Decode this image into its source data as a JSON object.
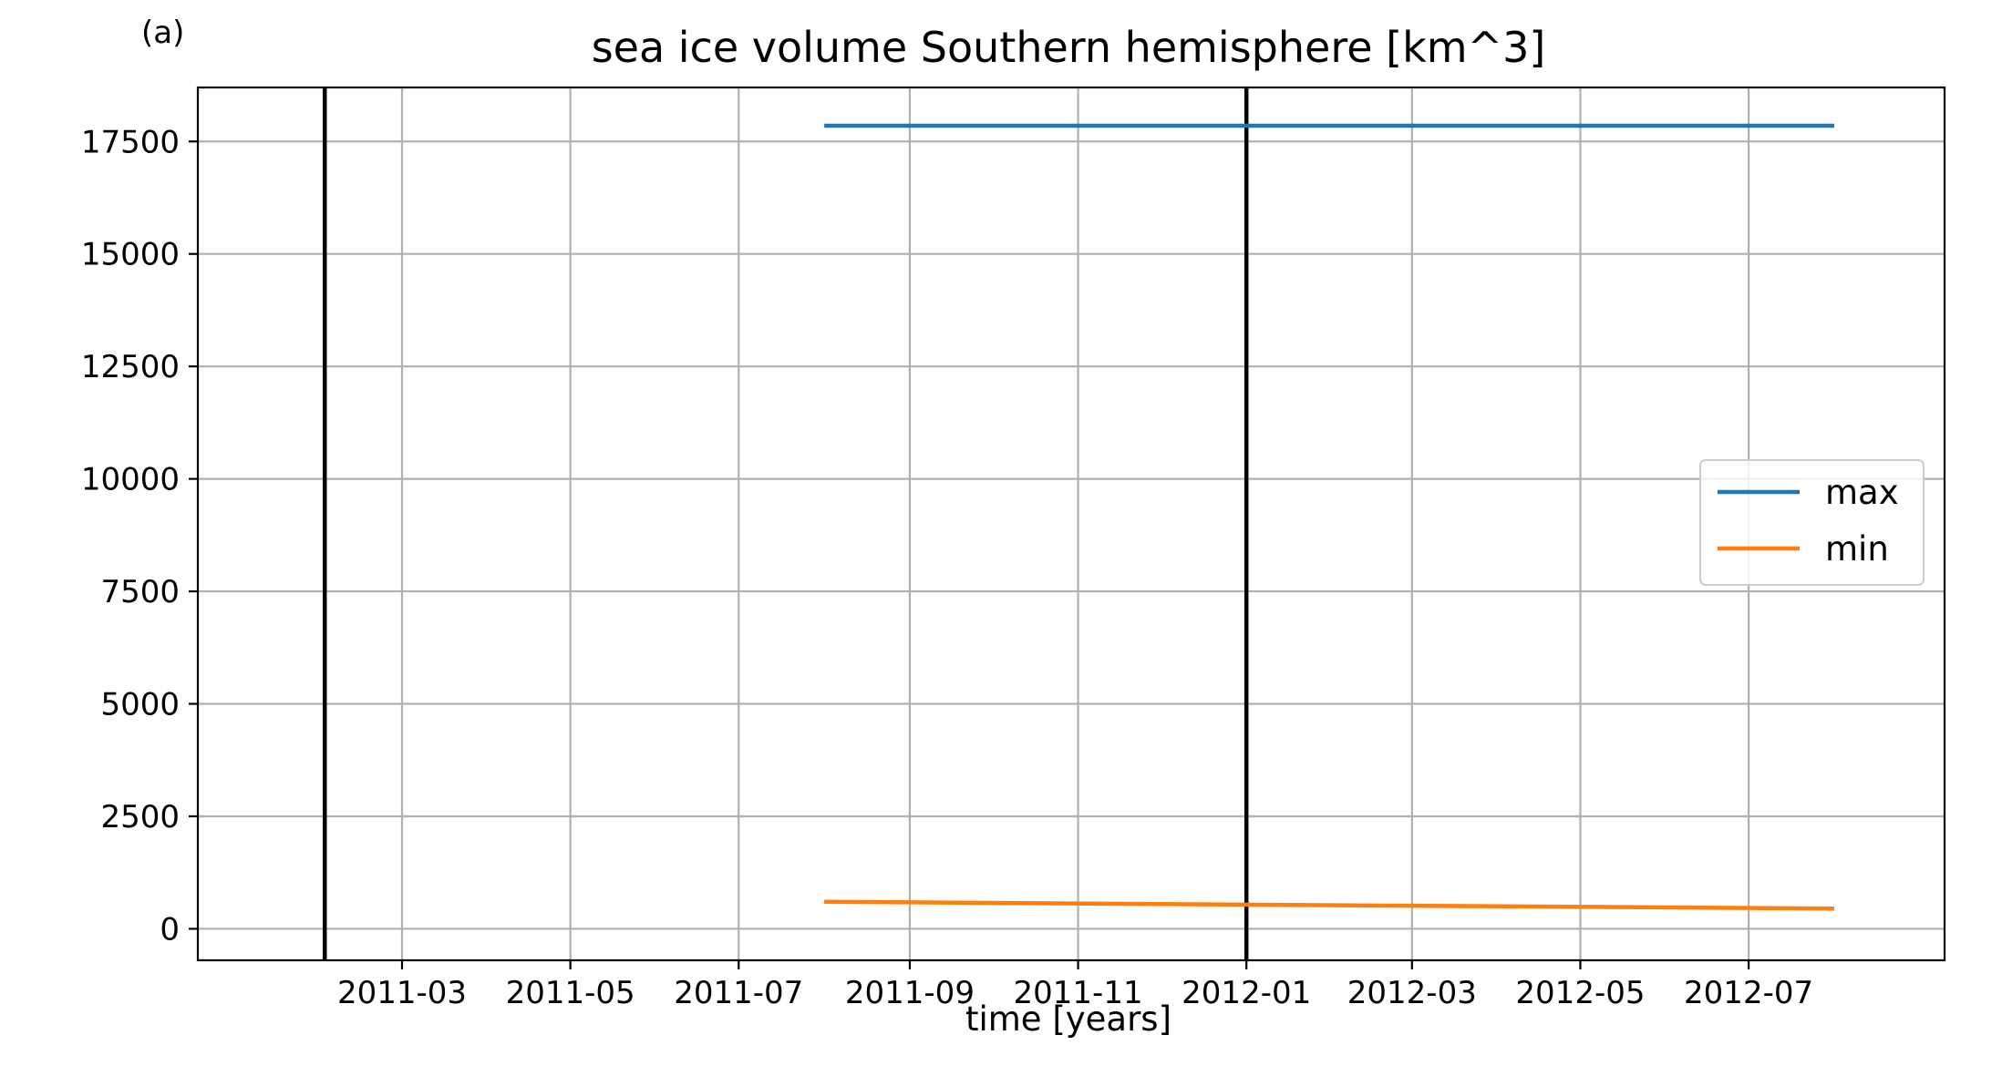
{
  "panel_label": "(a)",
  "chart_data": {
    "type": "line",
    "title": "sea ice volume Southern hemisphere [km^3]",
    "xlabel": "time [years]",
    "ylabel": "",
    "x_axis": "date",
    "xlim": [
      "2010-12-17",
      "2012-09-10"
    ],
    "ylim": [
      -700,
      18700
    ],
    "x_tick_labels": [
      "2011-03",
      "2011-05",
      "2011-07",
      "2011-09",
      "2011-11",
      "2012-01",
      "2012-03",
      "2012-05",
      "2012-07"
    ],
    "x_tick_dates": [
      "2011-03-01",
      "2011-05-01",
      "2011-07-01",
      "2011-09-01",
      "2011-11-01",
      "2012-01-01",
      "2012-03-01",
      "2012-05-01",
      "2012-07-01"
    ],
    "y_ticks": [
      0,
      2500,
      5000,
      7500,
      10000,
      12500,
      15000,
      17500
    ],
    "y_tick_labels": [
      "0",
      "2500",
      "5000",
      "7500",
      "10000",
      "12500",
      "15000",
      "17500"
    ],
    "grid": true,
    "vertical_lines": [
      "2011-02-01",
      "2012-01-01"
    ],
    "series": [
      {
        "name": "max",
        "color": "#1f77b4",
        "x": [
          "2011-08-01",
          "2012-08-01"
        ],
        "values": [
          17850,
          17850
        ]
      },
      {
        "name": "min",
        "color": "#ff7f0e",
        "x": [
          "2011-08-01",
          "2012-08-01"
        ],
        "values": [
          600,
          450
        ]
      }
    ],
    "legend": {
      "position": "center-right",
      "entries": [
        "max",
        "min"
      ]
    }
  }
}
